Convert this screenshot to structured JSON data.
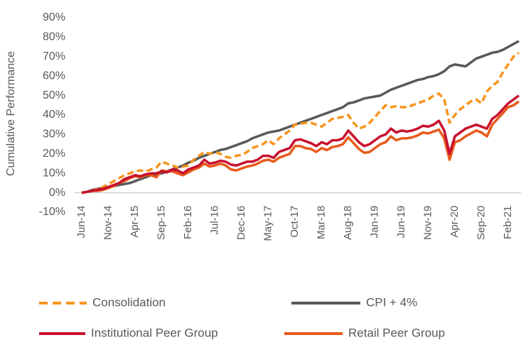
{
  "chart_data": {
    "type": "line",
    "y_label": "Cumulative Performance",
    "categories": [
      "Jun-14",
      null,
      null,
      null,
      null,
      "Nov-14",
      null,
      null,
      null,
      null,
      "Apr-15",
      null,
      null,
      null,
      null,
      "Sep-15",
      null,
      null,
      null,
      null,
      "Feb-16",
      null,
      null,
      null,
      null,
      "Jul-16",
      null,
      null,
      null,
      null,
      "Dec-16",
      null,
      null,
      null,
      null,
      "May-17",
      null,
      null,
      null,
      null,
      "Oct-17",
      null,
      null,
      null,
      null,
      "Mar-18",
      null,
      null,
      null,
      null,
      "Aug-18",
      null,
      null,
      null,
      null,
      "Jan-19",
      null,
      null,
      null,
      null,
      "Jun-19",
      null,
      null,
      null,
      null,
      "Nov-19",
      null,
      null,
      null,
      null,
      "Apr-20",
      null,
      null,
      null,
      null,
      "Sep-20",
      null,
      null,
      null,
      null,
      "Feb-21",
      null,
      null
    ],
    "series": [
      {
        "name": "Consolidation",
        "color": "#f7941d",
        "line_style": "dashed",
        "values": [
          0,
          0.5,
          1,
          2,
          3,
          4.5,
          6,
          7.5,
          9,
          10,
          11,
          11.5,
          11,
          12,
          13,
          16,
          15,
          14,
          13,
          13.5,
          14,
          17,
          19,
          21,
          20,
          21,
          20,
          18.5,
          18,
          19,
          19.5,
          21,
          23,
          24,
          25,
          27,
          25,
          28,
          30,
          32,
          35,
          35.5,
          36,
          36,
          35,
          34,
          36,
          38,
          38.5,
          39,
          40,
          36,
          33,
          34,
          36,
          39,
          42,
          45,
          44,
          44.5,
          44,
          44,
          45,
          46,
          47,
          48,
          50,
          51,
          48,
          36,
          40,
          43,
          45,
          47,
          48,
          46,
          52,
          55,
          57,
          62,
          66,
          70,
          72
        ]
      },
      {
        "name": "CPI + 4%",
        "color": "#595959",
        "line_style": "solid",
        "values": [
          0,
          0.5,
          1.5,
          2,
          2.5,
          3,
          3.5,
          4,
          4.5,
          5,
          6,
          7,
          8,
          9,
          9.5,
          10,
          11,
          12,
          13,
          14,
          15.5,
          16.5,
          18,
          19,
          20,
          21,
          22,
          22.5,
          23.5,
          24.5,
          25.5,
          26.5,
          28,
          29,
          30,
          31,
          31.5,
          32,
          33,
          34,
          35,
          36,
          37,
          38,
          39,
          40,
          41,
          42,
          43,
          44,
          46,
          46.5,
          47.5,
          48.5,
          49,
          49.5,
          50,
          51.5,
          53,
          54,
          55,
          56,
          57,
          58,
          58.5,
          59.5,
          60,
          61,
          62.5,
          65,
          66,
          65.5,
          65,
          67,
          69,
          70,
          71,
          72,
          72.5,
          73.5,
          75,
          76.5,
          78
        ]
      },
      {
        "name": "Institutional Peer Group",
        "color": "#c8102e",
        "line_style": "solid",
        "values": [
          0,
          0.5,
          1,
          1.5,
          2,
          3,
          4,
          5,
          7,
          8,
          9,
          8.5,
          9.5,
          10,
          10,
          11,
          10.5,
          12,
          11.5,
          10,
          12,
          13,
          14,
          17,
          15,
          15.5,
          16.5,
          16,
          14.5,
          14,
          15,
          16,
          16,
          17,
          19,
          19,
          18,
          21,
          22,
          23,
          27,
          27.5,
          26.5,
          25.5,
          24,
          26,
          25,
          27,
          27,
          28,
          32,
          29,
          26,
          24,
          25,
          27,
          29,
          30,
          33,
          31,
          32,
          31.5,
          32,
          33,
          34.5,
          34,
          35,
          37,
          32,
          20,
          29,
          31,
          33,
          34,
          35,
          34,
          33,
          38,
          40,
          43,
          46,
          48,
          50
        ]
      },
      {
        "name": "Retail Peer Group",
        "color": "#e85a1b",
        "line_style": "solid",
        "values": [
          0,
          0.5,
          1,
          1,
          1.5,
          2.5,
          3.5,
          5,
          6,
          7.5,
          8.5,
          8,
          9,
          9,
          8,
          11.5,
          11,
          11,
          10,
          9,
          10.5,
          12,
          13,
          15,
          13.5,
          14,
          15,
          14,
          12,
          11.5,
          12.5,
          13.5,
          14,
          15,
          16.5,
          17,
          16,
          18,
          19,
          20,
          24,
          24,
          23,
          22.5,
          21,
          23,
          22,
          23.5,
          24,
          25,
          28.5,
          25.5,
          22.5,
          20.5,
          21,
          23,
          25,
          26,
          29,
          27,
          28,
          28,
          28.5,
          29.5,
          31,
          30.5,
          31.5,
          32.5,
          28,
          17,
          26,
          27,
          29,
          30.5,
          32,
          31,
          29,
          35,
          38,
          41,
          44,
          45,
          47
        ]
      }
    ],
    "ylim": [
      -10,
      90
    ],
    "yticks": [
      {
        "value": -10,
        "label": "-10%"
      },
      {
        "value": 0,
        "label": "0%"
      },
      {
        "value": 10,
        "label": "10%"
      },
      {
        "value": 20,
        "label": "20%"
      },
      {
        "value": 30,
        "label": "30%"
      },
      {
        "value": 40,
        "label": "40%"
      },
      {
        "value": 50,
        "label": "50%"
      },
      {
        "value": 60,
        "label": "60%"
      },
      {
        "value": 70,
        "label": "70%"
      },
      {
        "value": 80,
        "label": "80%"
      },
      {
        "value": 90,
        "label": "90%"
      }
    ],
    "grid": false
  }
}
